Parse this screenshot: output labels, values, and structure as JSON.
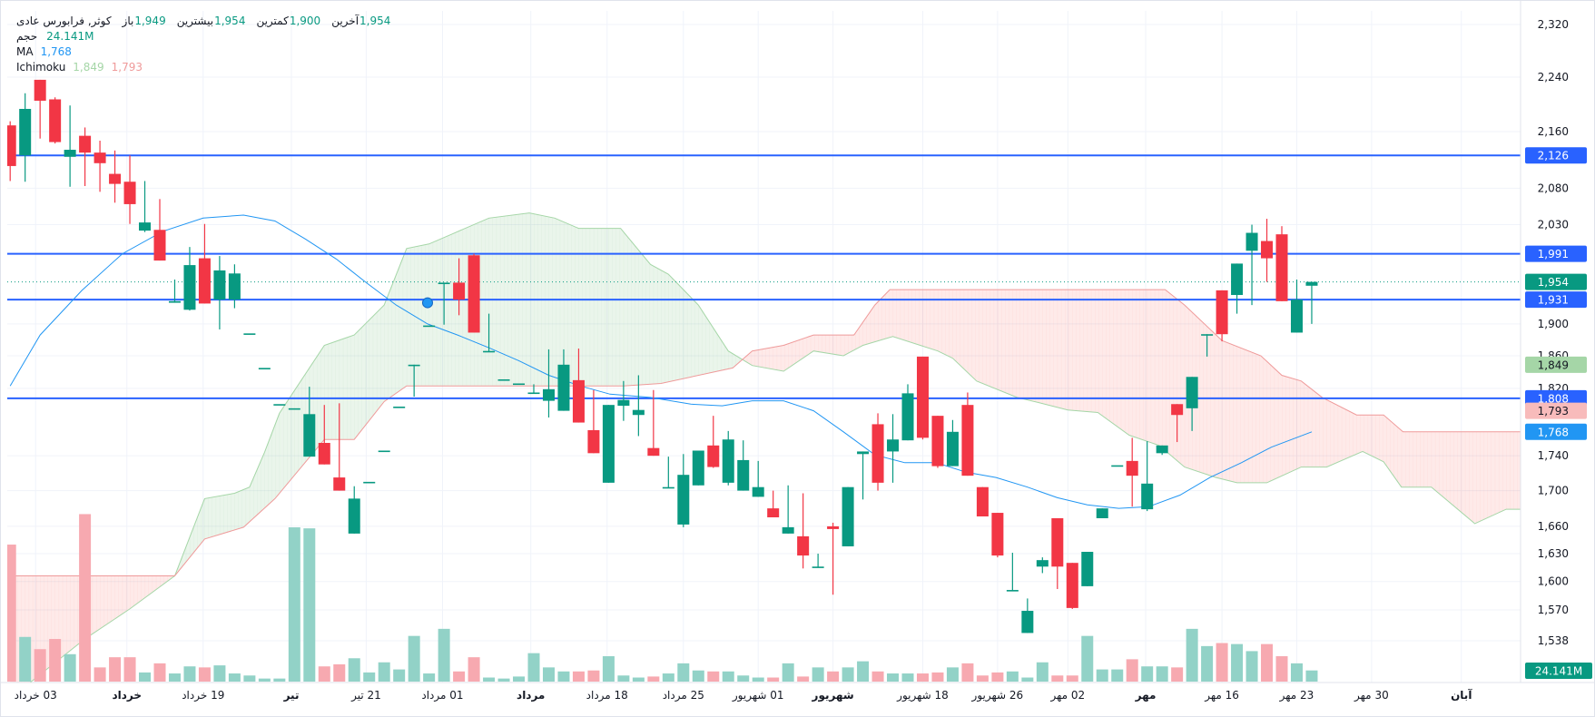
{
  "legend": {
    "symbol": "کوثر, فرابورس عادی",
    "ohlc": [
      {
        "label": "باز",
        "value": "1,949"
      },
      {
        "label": "بیشترین",
        "value": "1,954"
      },
      {
        "label": "کمترین",
        "value": "1,900"
      },
      {
        "label": "آخرین",
        "value": "1,954"
      }
    ],
    "volume_label": "حجم",
    "volume_value": "24.141M",
    "ma_label": "MA",
    "ma_value": "1,768",
    "ichimoku_label": "Ichimoku",
    "ichimoku_a": "1,849",
    "ichimoku_b": "1,793"
  },
  "colors": {
    "up": "#089981",
    "down": "#f23645",
    "volume_up": "#92d2c7",
    "volume_down": "#f7a9b0",
    "ma": "#2196f3",
    "span_a": "#a5d6a7",
    "span_b": "#ef9a9a",
    "cloud_up": "rgba(67,160,71,0.11)",
    "cloud_down": "rgba(244,67,54,0.11)",
    "hline": "#2962ff",
    "grid": "#f0f3fa",
    "text": "#131722"
  },
  "chart_data": {
    "type": "candlestick",
    "y_scale": "log",
    "ylim": [
      1538,
      2320
    ],
    "grid": true,
    "y_ticks": [
      "2,320",
      "2,240",
      "2,160",
      "2,080",
      "2,030",
      "1,900",
      "1,860",
      "1,820",
      "1,740",
      "1,700",
      "1,660",
      "1,630",
      "1,600",
      "1,570",
      "1,538"
    ],
    "x_ticks": [
      {
        "label": "03 خرداد",
        "bar": 1.7,
        "bold": false
      },
      {
        "label": "خرداد",
        "bar": 7.8,
        "bold": true
      },
      {
        "label": "19 خرداد",
        "bar": 12.9,
        "bold": false
      },
      {
        "label": "تیر",
        "bar": 18.8,
        "bold": true
      },
      {
        "label": "21 تیر",
        "bar": 23.8,
        "bold": false
      },
      {
        "label": "01 مرداد",
        "bar": 28.9,
        "bold": false
      },
      {
        "label": "مرداد",
        "bar": 34.8,
        "bold": true
      },
      {
        "label": "18 مرداد",
        "bar": 39.9,
        "bold": false
      },
      {
        "label": "25 مرداد",
        "bar": 45,
        "bold": false
      },
      {
        "label": "01 شهریور",
        "bar": 50,
        "bold": false
      },
      {
        "label": "شهریور",
        "bar": 55,
        "bold": true
      },
      {
        "label": "18 شهریور",
        "bar": 61,
        "bold": false
      },
      {
        "label": "26 شهریور",
        "bar": 66,
        "bold": false
      },
      {
        "label": "02 مهر",
        "bar": 70.7,
        "bold": false
      },
      {
        "label": "مهر",
        "bar": 75.9,
        "bold": true
      },
      {
        "label": "16 مهر",
        "bar": 81,
        "bold": false
      },
      {
        "label": "23 مهر",
        "bar": 86,
        "bold": false
      },
      {
        "label": "30 مهر",
        "bar": 91,
        "bold": false
      },
      {
        "label": "آبان",
        "bar": 97,
        "bold": true
      }
    ],
    "candles_ohlc": [
      [
        2169,
        2175,
        2090,
        2111
      ],
      [
        2126,
        2216,
        2089,
        2193
      ],
      [
        2236,
        2236,
        2150,
        2205
      ],
      [
        2207,
        2210,
        2143,
        2145
      ],
      [
        2124,
        2198,
        2082,
        2134
      ],
      [
        2154,
        2166,
        2083,
        2130
      ],
      [
        2130,
        2147,
        2075,
        2115
      ],
      [
        2100,
        2133,
        2060,
        2086
      ],
      [
        2089,
        2126,
        2031,
        2058
      ],
      [
        2022,
        2090,
        2020,
        2033
      ],
      [
        2023,
        2065,
        1982,
        1982
      ],
      [
        1927,
        1957,
        1927,
        1929
      ],
      [
        1918,
        2000,
        1917,
        1976
      ],
      [
        1985,
        2031,
        1926,
        1926
      ],
      [
        1931,
        1988,
        1893,
        1969
      ],
      [
        1931,
        1977,
        1920,
        1965
      ],
      [
        1887,
        1887,
        1887,
        1888
      ],
      [
        1844,
        1844,
        1844,
        1845
      ],
      [
        1800,
        1800,
        1800,
        1801
      ],
      [
        1795,
        1795,
        1795,
        1796
      ],
      [
        1739,
        1822,
        1739,
        1789
      ],
      [
        1755,
        1800,
        1730,
        1730
      ],
      [
        1715,
        1802,
        1700,
        1700
      ],
      [
        1652,
        1705,
        1652,
        1691
      ],
      [
        1709,
        1709,
        1709,
        1710
      ],
      [
        1745,
        1745,
        1745,
        1746
      ],
      [
        1797,
        1797,
        1797,
        1798
      ],
      [
        1848,
        1849,
        1810,
        1849
      ],
      [
        1897,
        1897,
        1897,
        1898
      ],
      [
        1952,
        1953,
        1899,
        1953
      ],
      [
        1953,
        1985,
        1911,
        1931
      ],
      [
        1989,
        1991,
        1889,
        1889
      ],
      [
        1865,
        1913,
        1865,
        1866
      ],
      [
        1830,
        1830,
        1830,
        1831
      ],
      [
        1825,
        1825,
        1825,
        1826
      ],
      [
        1814,
        1825,
        1814,
        1815
      ],
      [
        1805,
        1868,
        1785,
        1819
      ],
      [
        1793,
        1868,
        1793,
        1849
      ],
      [
        1830,
        1869,
        1779,
        1779
      ],
      [
        1770,
        1818,
        1743,
        1743
      ],
      [
        1709,
        1800,
        1709,
        1800
      ],
      [
        1799,
        1829,
        1781,
        1806
      ],
      [
        1788,
        1836,
        1763,
        1794
      ],
      [
        1749,
        1818,
        1740,
        1740
      ],
      [
        1703,
        1739,
        1703,
        1704
      ],
      [
        1662,
        1742,
        1659,
        1718
      ],
      [
        1706,
        1746,
        1706,
        1746
      ],
      [
        1752,
        1787,
        1726,
        1727
      ],
      [
        1709,
        1769,
        1706,
        1759
      ],
      [
        1700,
        1758,
        1700,
        1735
      ],
      [
        1693,
        1734,
        1693,
        1704
      ],
      [
        1680,
        1700,
        1670,
        1670
      ],
      [
        1652,
        1706,
        1652,
        1659
      ],
      [
        1649,
        1697,
        1614,
        1628
      ],
      [
        1615,
        1630,
        1615,
        1616
      ],
      [
        1660,
        1664,
        1586,
        1657
      ],
      [
        1638,
        1704,
        1638,
        1704
      ],
      [
        1742,
        1745,
        1690,
        1745
      ],
      [
        1777,
        1790,
        1700,
        1709
      ],
      [
        1745,
        1789,
        1709,
        1759
      ],
      [
        1758,
        1825,
        1758,
        1814
      ],
      [
        1859,
        1859,
        1759,
        1761
      ],
      [
        1787,
        1787,
        1726,
        1728
      ],
      [
        1728,
        1782,
        1728,
        1768
      ],
      [
        1800,
        1815,
        1717,
        1717
      ],
      [
        1704,
        1704,
        1671,
        1671
      ],
      [
        1675,
        1675,
        1626,
        1628
      ],
      [
        1590,
        1631,
        1590,
        1591
      ],
      [
        1546,
        1582,
        1546,
        1569
      ],
      [
        1616,
        1626,
        1609,
        1623
      ],
      [
        1669,
        1669,
        1592,
        1616
      ],
      [
        1620,
        1620,
        1571,
        1572
      ],
      [
        1595,
        1632,
        1595,
        1632
      ],
      [
        1669,
        1680,
        1669,
        1680
      ],
      [
        1728,
        1728,
        1728,
        1729
      ],
      [
        1734,
        1761,
        1682,
        1717
      ],
      [
        1679,
        1757,
        1677,
        1708
      ],
      [
        1743,
        1752,
        1741,
        1752
      ],
      [
        1801,
        1801,
        1756,
        1788
      ],
      [
        1796,
        1834,
        1769,
        1834
      ],
      [
        1886,
        1887,
        1859,
        1887
      ],
      [
        1943,
        1943,
        1878,
        1887
      ],
      [
        1937,
        1978,
        1913,
        1978
      ],
      [
        1995,
        2030,
        1924,
        2019
      ],
      [
        2008,
        2038,
        1954,
        1985
      ],
      [
        2017,
        2028,
        1929,
        1929
      ],
      [
        1889,
        1957,
        1889,
        1931
      ],
      [
        1949,
        1954,
        1900,
        1954
      ]
    ],
    "volume_millions": [
      296.3,
      96.6,
      70.2,
      92.2,
      59.3,
      362.2,
      30.7,
      52.7,
      52.7,
      19.8,
      39.5,
      17.6,
      32.9,
      30.7,
      35.1,
      17.6,
      13.2,
      6.6,
      6.6,
      333.6,
      331.4,
      32.9,
      37.3,
      50.5,
      19.8,
      41.7,
      26.3,
      98.8,
      17.6,
      114.1,
      22.0,
      52.7,
      8.8,
      6.6,
      11.0,
      61.5,
      30.7,
      22.0,
      22.0,
      24.1,
      54.9,
      13.2,
      8.8,
      11.0,
      17.6,
      39.5,
      24.1,
      22.0,
      22.0,
      13.2,
      8.8,
      8.8,
      39.5,
      11.0,
      30.7,
      22.0,
      30.7,
      43.9,
      22.0,
      17.6,
      17.6,
      17.6,
      19.8,
      30.7,
      39.5,
      13.2,
      19.8,
      22.0,
      8.8,
      41.7,
      13.2,
      13.2,
      98.8,
      26.3,
      26.3,
      48.3,
      32.9,
      32.9,
      30.7,
      114.1,
      76.8,
      83.4,
      81.2,
      65.9,
      81.2,
      54.9,
      39.5,
      24.141
    ],
    "ma_points": [
      [
        0,
        1823
      ],
      [
        2,
        1886
      ],
      [
        4.8,
        1943
      ],
      [
        7.5,
        1991
      ],
      [
        10.2,
        2021
      ],
      [
        12.9,
        2039
      ],
      [
        15.6,
        2043
      ],
      [
        17.7,
        2035
      ],
      [
        19.7,
        2011
      ],
      [
        21.8,
        1984
      ],
      [
        23.8,
        1953
      ],
      [
        25.8,
        1924
      ],
      [
        27.9,
        1900
      ],
      [
        29.9,
        1886
      ],
      [
        32,
        1870
      ],
      [
        34,
        1854
      ],
      [
        36,
        1836
      ],
      [
        38.1,
        1823
      ],
      [
        40.1,
        1813
      ],
      [
        42.8,
        1809
      ],
      [
        45.5,
        1801
      ],
      [
        47.6,
        1799
      ],
      [
        49.6,
        1805
      ],
      [
        51.7,
        1805
      ],
      [
        53.7,
        1793
      ],
      [
        55.7,
        1768
      ],
      [
        57.8,
        1741
      ],
      [
        59.8,
        1732
      ],
      [
        61.9,
        1732
      ],
      [
        63.9,
        1721
      ],
      [
        65.9,
        1715
      ],
      [
        68,
        1704
      ],
      [
        70,
        1692
      ],
      [
        72,
        1684
      ],
      [
        74.1,
        1680
      ],
      [
        76.1,
        1682
      ],
      [
        78.2,
        1695
      ],
      [
        80.2,
        1715
      ],
      [
        82.3,
        1732
      ],
      [
        84.3,
        1750
      ],
      [
        87,
        1768
      ]
    ],
    "ichimoku_span_a": [
      [
        0,
        1480
      ],
      [
        5,
        1540
      ],
      [
        8,
        1571
      ],
      [
        11,
        1606
      ],
      [
        13,
        1691
      ],
      [
        15,
        1697
      ],
      [
        16,
        1704
      ],
      [
        17,
        1744
      ],
      [
        18,
        1790
      ],
      [
        21,
        1873
      ],
      [
        23,
        1886
      ],
      [
        25,
        1924
      ],
      [
        26.5,
        1998
      ],
      [
        28,
        2004
      ],
      [
        29.6,
        2018
      ],
      [
        32,
        2039
      ],
      [
        34.7,
        2046
      ],
      [
        36.4,
        2039
      ],
      [
        38,
        2025
      ],
      [
        40.8,
        2025
      ],
      [
        42.8,
        1977
      ],
      [
        44,
        1964
      ],
      [
        46,
        1924
      ],
      [
        48,
        1866
      ],
      [
        49.6,
        1848
      ],
      [
        51.7,
        1841
      ],
      [
        53.7,
        1866
      ],
      [
        55.7,
        1860
      ],
      [
        57,
        1873
      ],
      [
        59,
        1884
      ],
      [
        62,
        1866
      ],
      [
        63,
        1857
      ],
      [
        64.6,
        1829
      ],
      [
        67.3,
        1809
      ],
      [
        68.7,
        1803
      ],
      [
        70.7,
        1794
      ],
      [
        72.7,
        1791
      ],
      [
        74.8,
        1764
      ],
      [
        76.8,
        1752
      ],
      [
        78.5,
        1727
      ],
      [
        80.6,
        1715
      ],
      [
        82,
        1709
      ],
      [
        84,
        1709
      ],
      [
        86.3,
        1727
      ],
      [
        88,
        1727
      ],
      [
        90.4,
        1745
      ],
      [
        91.8,
        1733
      ],
      [
        93,
        1704
      ],
      [
        95,
        1704
      ],
      [
        97.9,
        1663
      ],
      [
        100,
        1679
      ],
      [
        101,
        1679
      ]
    ],
    "ichimoku_span_b": [
      [
        0,
        1606
      ],
      [
        11,
        1606
      ],
      [
        13,
        1646
      ],
      [
        15.6,
        1659
      ],
      [
        17.7,
        1691
      ],
      [
        19.7,
        1732
      ],
      [
        21,
        1759
      ],
      [
        23,
        1759
      ],
      [
        25,
        1804
      ],
      [
        26.5,
        1823
      ],
      [
        41,
        1823
      ],
      [
        43.5,
        1826
      ],
      [
        48.3,
        1845
      ],
      [
        49.6,
        1866
      ],
      [
        51.7,
        1873
      ],
      [
        53.7,
        1886
      ],
      [
        56.4,
        1886
      ],
      [
        57.8,
        1924
      ],
      [
        58.8,
        1944
      ],
      [
        77.2,
        1944
      ],
      [
        78.5,
        1924
      ],
      [
        81,
        1879
      ],
      [
        83.6,
        1860
      ],
      [
        85,
        1836
      ],
      [
        86.3,
        1829
      ],
      [
        87.7,
        1809
      ],
      [
        90,
        1788
      ],
      [
        91.8,
        1788
      ],
      [
        93.1,
        1768
      ],
      [
        101,
        1768
      ]
    ],
    "horizontal_lines": [
      2126,
      1991,
      1931,
      1808
    ],
    "last_price": 1954,
    "marker": {
      "bar": 27.9,
      "price": 1927
    },
    "axis_badges": [
      {
        "text": "2,126",
        "price": 2126,
        "bg": "#2962ff",
        "fg": "#ffffff"
      },
      {
        "text": "1,991",
        "price": 1991,
        "bg": "#2962ff",
        "fg": "#ffffff"
      },
      {
        "text": "1,954",
        "price": 1954,
        "bg": "#089981",
        "fg": "#ffffff"
      },
      {
        "text": "1,931",
        "price": 1931,
        "bg": "#2962ff",
        "fg": "#ffffff"
      },
      {
        "text": "1,849",
        "price": 1849,
        "bg": "#a5d6a7",
        "fg": "#131722"
      },
      {
        "text": "1,808",
        "price": 1808,
        "bg": "#2962ff",
        "fg": "#ffffff"
      },
      {
        "text": "1,793",
        "price": 1793,
        "bg": "#f8bbbb",
        "fg": "#131722"
      },
      {
        "text": "1,768",
        "price": 1768,
        "bg": "#2196f3",
        "fg": "#ffffff"
      }
    ],
    "volume_badge": "24.141M"
  }
}
